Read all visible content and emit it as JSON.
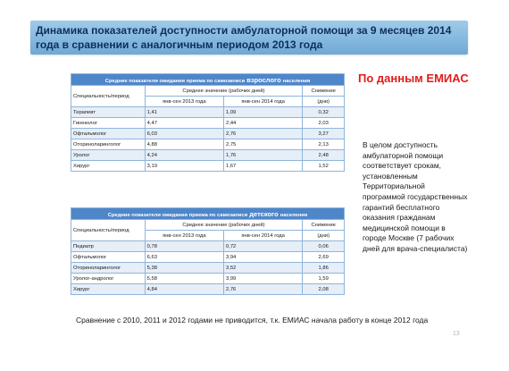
{
  "title": "Динамика показателей доступности амбулаторной помощи за 9 месяцев 2014 года в сравнении с аналогичным периодом 2013 года",
  "source_note": "По данным ЕМИАС",
  "side_note": "В целом доступность амбулаторной помощи соответствует срокам, установленным Территориальной программой государственных гарантий бесплатного оказания гражданам медицинской помощи в городе Москве (7 рабочих дней для врача-специалиста)",
  "footer": "Сравнение с 2010, 2011 и 2012 годами не приводится, т.к. ЕМИАС начала работу в конце 2012 года",
  "page_number": "13",
  "adult_table": {
    "caption_prefix": "Средние показатели ожидания приема по самозаписи",
    "caption_emph": "взрослого",
    "caption_suffix": "населения",
    "col_spec": "Специальность/период",
    "col_avg": "Среднее значение (рабочих дней)",
    "col_decrease": "Снижение",
    "col_2013": "янв-сен 2013 года",
    "col_2014": "янв-сен 2014 года",
    "col_days": "(дни)",
    "rows": [
      {
        "spec": "Терапевт",
        "v2013": "1,41",
        "v2014": "1,09",
        "diff": "0,32"
      },
      {
        "spec": "Гинеколог",
        "v2013": "4,47",
        "v2014": "2,44",
        "diff": "2,03"
      },
      {
        "spec": "Офтальмолог",
        "v2013": "6,03",
        "v2014": "2,76",
        "diff": "3,27"
      },
      {
        "spec": "Оториноларинголог",
        "v2013": "4,88",
        "v2014": "2,75",
        "diff": "2,13"
      },
      {
        "spec": "Уролог",
        "v2013": "4,24",
        "v2014": "1,76",
        "diff": "2,48"
      },
      {
        "spec": "Хирург",
        "v2013": "3,19",
        "v2014": "1,67",
        "diff": "1,52"
      }
    ]
  },
  "child_table": {
    "caption_prefix": "Средние показатели ожидания приема по самозаписи",
    "caption_emph": "детского",
    "caption_suffix": "населения",
    "col_spec": "Специальность/период",
    "col_avg": "Среднее значение (рабочих дней)",
    "col_decrease": "Снижение",
    "col_2013": "янв-сен 2013 года",
    "col_2014": "янв-сен 2014 года",
    "col_days": "(дни)",
    "rows": [
      {
        "spec": "Педиатр",
        "v2013": "0,78",
        "v2014": "0,72",
        "diff": "0,06"
      },
      {
        "spec": "Офтальмолог",
        "v2013": "6,63",
        "v2014": "3,94",
        "diff": "2,69"
      },
      {
        "spec": "Оториноларинголог",
        "v2013": "5,38",
        "v2014": "3,52",
        "diff": "1,86"
      },
      {
        "spec": "Уролог-андролог",
        "v2013": "5,58",
        "v2014": "3,99",
        "diff": "1,59"
      },
      {
        "spec": "Хирург",
        "v2013": "4,84",
        "v2014": "2,76",
        "diff": "2,08"
      }
    ]
  }
}
